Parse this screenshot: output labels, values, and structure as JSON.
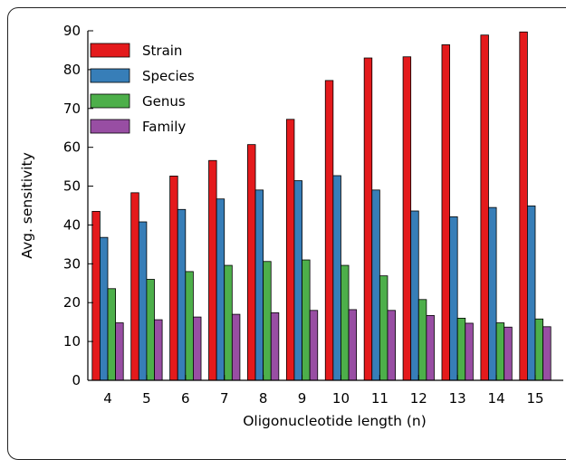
{
  "chart_data": {
    "type": "bar",
    "title": "",
    "xlabel": "Oligonucleotide length (n)",
    "ylabel": "Avg. sensitivity",
    "ylim": [
      0,
      90
    ],
    "yticks": [
      0,
      10,
      20,
      30,
      40,
      50,
      60,
      70,
      80,
      90
    ],
    "categories": [
      "4",
      "5",
      "6",
      "7",
      "8",
      "9",
      "10",
      "11",
      "12",
      "13",
      "14",
      "15"
    ],
    "grid": false,
    "legend_position": "top-left",
    "series": [
      {
        "name": "Strain",
        "color": "#e41a1c",
        "values": [
          43.5,
          48.3,
          52.6,
          56.6,
          60.7,
          67.2,
          77.2,
          83.0,
          83.3,
          86.4,
          88.9,
          89.7
        ]
      },
      {
        "name": "Species",
        "color": "#377eb8",
        "values": [
          36.8,
          40.8,
          44.0,
          46.7,
          49.0,
          51.4,
          52.7,
          49.0,
          43.6,
          42.1,
          44.5,
          44.9
        ]
      },
      {
        "name": "Genus",
        "color": "#4daf4a",
        "values": [
          23.6,
          26.0,
          28.0,
          29.6,
          30.6,
          31.0,
          29.6,
          26.9,
          20.8,
          16.0,
          14.8,
          15.8
        ]
      },
      {
        "name": "Family",
        "color": "#984ea3",
        "values": [
          14.8,
          15.6,
          16.3,
          17.0,
          17.4,
          18.0,
          18.2,
          18.0,
          16.7,
          14.7,
          13.7,
          13.8
        ]
      }
    ]
  }
}
